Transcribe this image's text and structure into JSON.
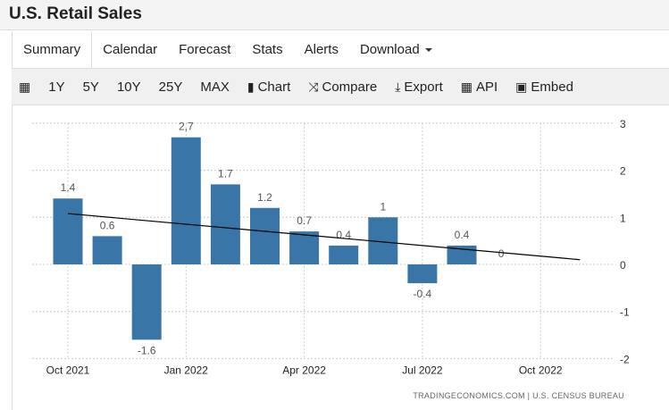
{
  "title": "U.S. Retail Sales",
  "tabs": [
    {
      "label": "Summary"
    },
    {
      "label": "Calendar"
    },
    {
      "label": "Forecast"
    },
    {
      "label": "Stats"
    },
    {
      "label": "Alerts"
    },
    {
      "label": "Download"
    }
  ],
  "toolbar": {
    "ranges": [
      "1Y",
      "5Y",
      "10Y",
      "25Y",
      "MAX"
    ],
    "chart": "Chart",
    "compare": "Compare",
    "export": "Export",
    "api": "API",
    "embed": "Embed"
  },
  "colors": {
    "bar": "#3a75a8",
    "trend": "#000000"
  },
  "chart_data": {
    "type": "bar",
    "categories": [
      "Oct 2021",
      "Nov 2021",
      "Dec 2021",
      "Jan 2022",
      "Feb 2022",
      "Mar 2022",
      "Apr 2022",
      "May 2022",
      "Jun 2022",
      "Jul 2022",
      "Aug 2022",
      "Sep 2022"
    ],
    "values": [
      1.4,
      0.6,
      -1.6,
      2.7,
      1.7,
      1.2,
      0.7,
      0.4,
      1,
      -0.4,
      0.4,
      0
    ],
    "value_labels": [
      "1.4",
      "0.6",
      "-1.6",
      "2,7",
      "1.7",
      "1.2",
      "0.7",
      "0.4",
      "1",
      "-0.4",
      "0.4",
      "0"
    ],
    "xticks": [
      {
        "label": "Oct 2021",
        "index": 0
      },
      {
        "label": "Jan 2022",
        "index": 3
      },
      {
        "label": "Apr 2022",
        "index": 6
      },
      {
        "label": "Jul 2022",
        "index": 9
      },
      {
        "label": "Oct 2022",
        "index": 12
      }
    ],
    "yticks": [
      3,
      2,
      1,
      0,
      -1,
      -2
    ],
    "ylim": [
      -2,
      3
    ],
    "trendline": {
      "start": [
        0,
        1.08
      ],
      "end": [
        13,
        0.1
      ]
    },
    "grid": true,
    "source": "TRADINGECONOMICS.COM  |  U.S. CENSUS BUREAU"
  }
}
